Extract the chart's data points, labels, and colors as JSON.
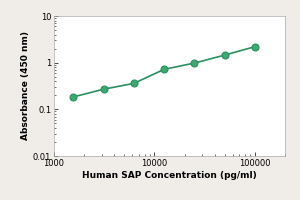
{
  "x_values": [
    1563,
    3125,
    6250,
    12500,
    25000,
    50000,
    100000
  ],
  "y_values": [
    0.185,
    0.27,
    0.36,
    0.72,
    0.98,
    1.45,
    2.2
  ],
  "line_color": "#2a9060",
  "marker_facecolor": "#3aaa70",
  "marker_edgecolor": "#2a9060",
  "xlabel": "Human SAP Concentration (pg/ml)",
  "ylabel": "Absorbance (450 nm)",
  "xlim": [
    1000,
    200000
  ],
  "ylim": [
    0.01,
    10
  ],
  "background_color": "#f0ede8",
  "plot_bg_color": "#ffffff",
  "marker_size": 5,
  "line_width": 1.2,
  "xlabel_fontsize": 6.5,
  "ylabel_fontsize": 6.5,
  "tick_fontsize": 6.0,
  "xticks": [
    1000,
    10000,
    100000
  ],
  "yticks": [
    0.01,
    0.1,
    1,
    10
  ]
}
